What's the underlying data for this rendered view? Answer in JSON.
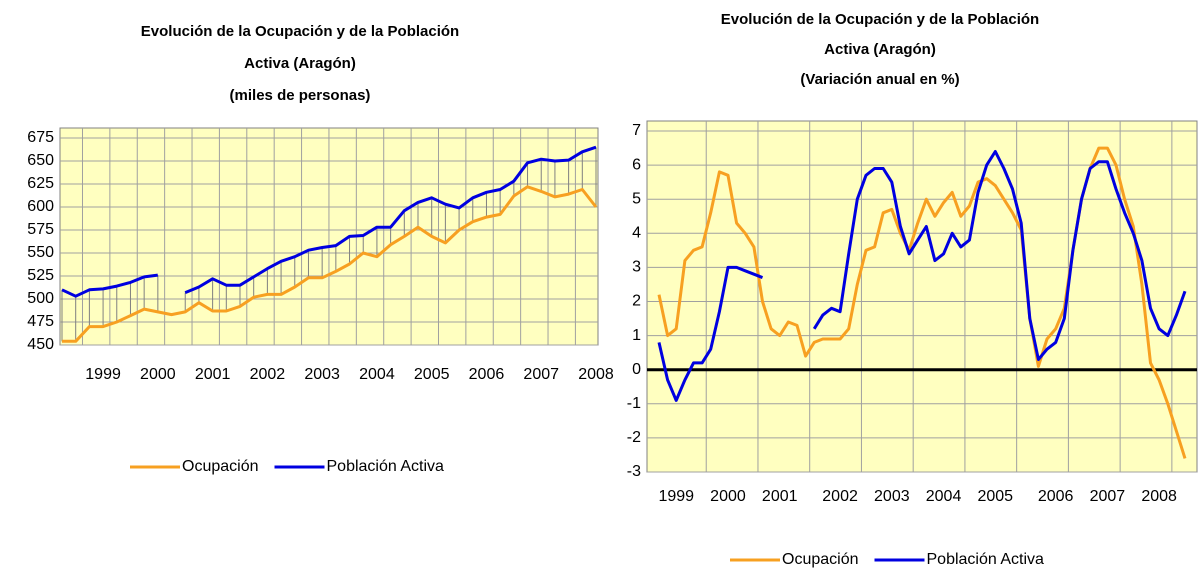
{
  "chart_data": [
    {
      "type": "line",
      "title": [
        "Evolución de la Ocupación y de la Población",
        "Activa (Aragón)",
        "(miles de personas)"
      ],
      "categories": [
        null,
        null,
        null,
        "1999",
        null,
        null,
        null,
        "2000",
        null,
        null,
        null,
        "2001",
        null,
        null,
        null,
        "2002",
        null,
        null,
        null,
        "2003",
        null,
        null,
        null,
        "2004",
        null,
        null,
        null,
        "2005",
        null,
        null,
        null,
        "2006",
        null,
        null,
        null,
        "2007",
        null,
        null,
        null,
        "2008"
      ],
      "series": [
        {
          "name": "Ocupación",
          "color": "#f7a021",
          "values": [
            454,
            454,
            470,
            470,
            475,
            482,
            489,
            486,
            483,
            486,
            496,
            487,
            487,
            492,
            502,
            505,
            505,
            513,
            523,
            523,
            530,
            538,
            550,
            546,
            559,
            568,
            578,
            568,
            561,
            575,
            584,
            589,
            592,
            612,
            622,
            617,
            611,
            614,
            619,
            600
          ]
        },
        {
          "name": "Población Activa",
          "color": "#0000e0",
          "values": [
            510,
            503,
            510,
            511,
            514,
            518,
            524,
            526,
            null,
            507,
            513,
            522,
            515,
            515,
            524,
            533,
            541,
            546,
            553,
            556,
            558,
            568,
            569,
            578,
            578,
            596,
            605,
            610,
            603,
            599,
            610,
            616,
            619,
            628,
            648,
            652,
            650,
            651,
            660,
            665
          ]
        }
      ],
      "ylim": [
        450,
        675
      ],
      "yticks": [
        450,
        475,
        500,
        525,
        550,
        575,
        600,
        625,
        650,
        675
      ],
      "grid": true,
      "hilo_lines": true
    },
    {
      "type": "line",
      "title": [
        "Evolución de la Ocupación y de la Población",
        "Activa (Aragón)",
        "(Variación anual en %)"
      ],
      "categories": [
        null,
        null,
        "1999",
        null,
        null,
        null,
        null,
        null,
        "2000",
        null,
        null,
        null,
        null,
        null,
        "2001",
        null,
        null,
        null,
        null,
        null,
        null,
        "2002",
        null,
        null,
        null,
        null,
        null,
        "2003",
        null,
        null,
        null,
        null,
        null,
        "2004",
        null,
        null,
        null,
        null,
        null,
        "2005",
        null,
        null,
        null,
        null,
        null,
        null,
        "2006",
        null,
        null,
        null,
        null,
        null,
        "2007",
        null,
        null,
        null,
        null,
        null,
        "2008",
        null,
        null,
        null
      ],
      "series": [
        {
          "name": "Ocupación",
          "color": "#f7a021",
          "values": [
            2.2,
            1.0,
            1.2,
            3.2,
            3.5,
            3.6,
            4.6,
            5.8,
            5.7,
            4.3,
            4.0,
            3.6,
            2.0,
            1.2,
            1.0,
            1.4,
            1.3,
            0.4,
            0.8,
            0.9,
            0.9,
            0.9,
            1.2,
            2.5,
            3.5,
            3.6,
            4.6,
            4.7,
            4.0,
            3.5,
            4.3,
            5.0,
            4.5,
            4.9,
            5.2,
            4.5,
            4.8,
            5.5,
            5.6,
            5.4,
            5.0,
            4.6,
            4.1,
            1.5,
            0.1,
            0.9,
            1.2,
            1.8,
            3.5,
            5.0,
            5.9,
            6.5,
            6.5,
            6.0,
            5.0,
            4.2,
            2.5,
            0.2,
            -0.3,
            -1.0,
            -1.8,
            -2.6
          ]
        },
        {
          "name": "Población Activa",
          "color": "#0000e0",
          "values": [
            0.8,
            -0.3,
            -0.9,
            -0.3,
            0.2,
            0.2,
            0.6,
            1.7,
            3.0,
            3.0,
            2.9,
            2.8,
            2.7,
            null,
            null,
            null,
            null,
            null,
            1.2,
            1.6,
            1.8,
            1.7,
            3.4,
            5.0,
            5.7,
            5.9,
            5.9,
            5.5,
            4.2,
            3.4,
            3.8,
            4.2,
            3.2,
            3.4,
            4.0,
            3.6,
            3.8,
            5.2,
            6.0,
            6.4,
            5.9,
            5.3,
            4.3,
            1.5,
            0.3,
            0.6,
            0.8,
            1.5,
            3.5,
            5.0,
            5.9,
            6.1,
            6.1,
            5.3,
            4.6,
            4.0,
            3.2,
            1.8,
            1.2,
            1.0,
            1.6,
            2.3
          ]
        }
      ],
      "ylim": [
        -3,
        7
      ],
      "yticks": [
        -3,
        -2,
        -1,
        0,
        1,
        2,
        3,
        4,
        5,
        6,
        7
      ],
      "grid": true,
      "zero_line": true
    }
  ]
}
